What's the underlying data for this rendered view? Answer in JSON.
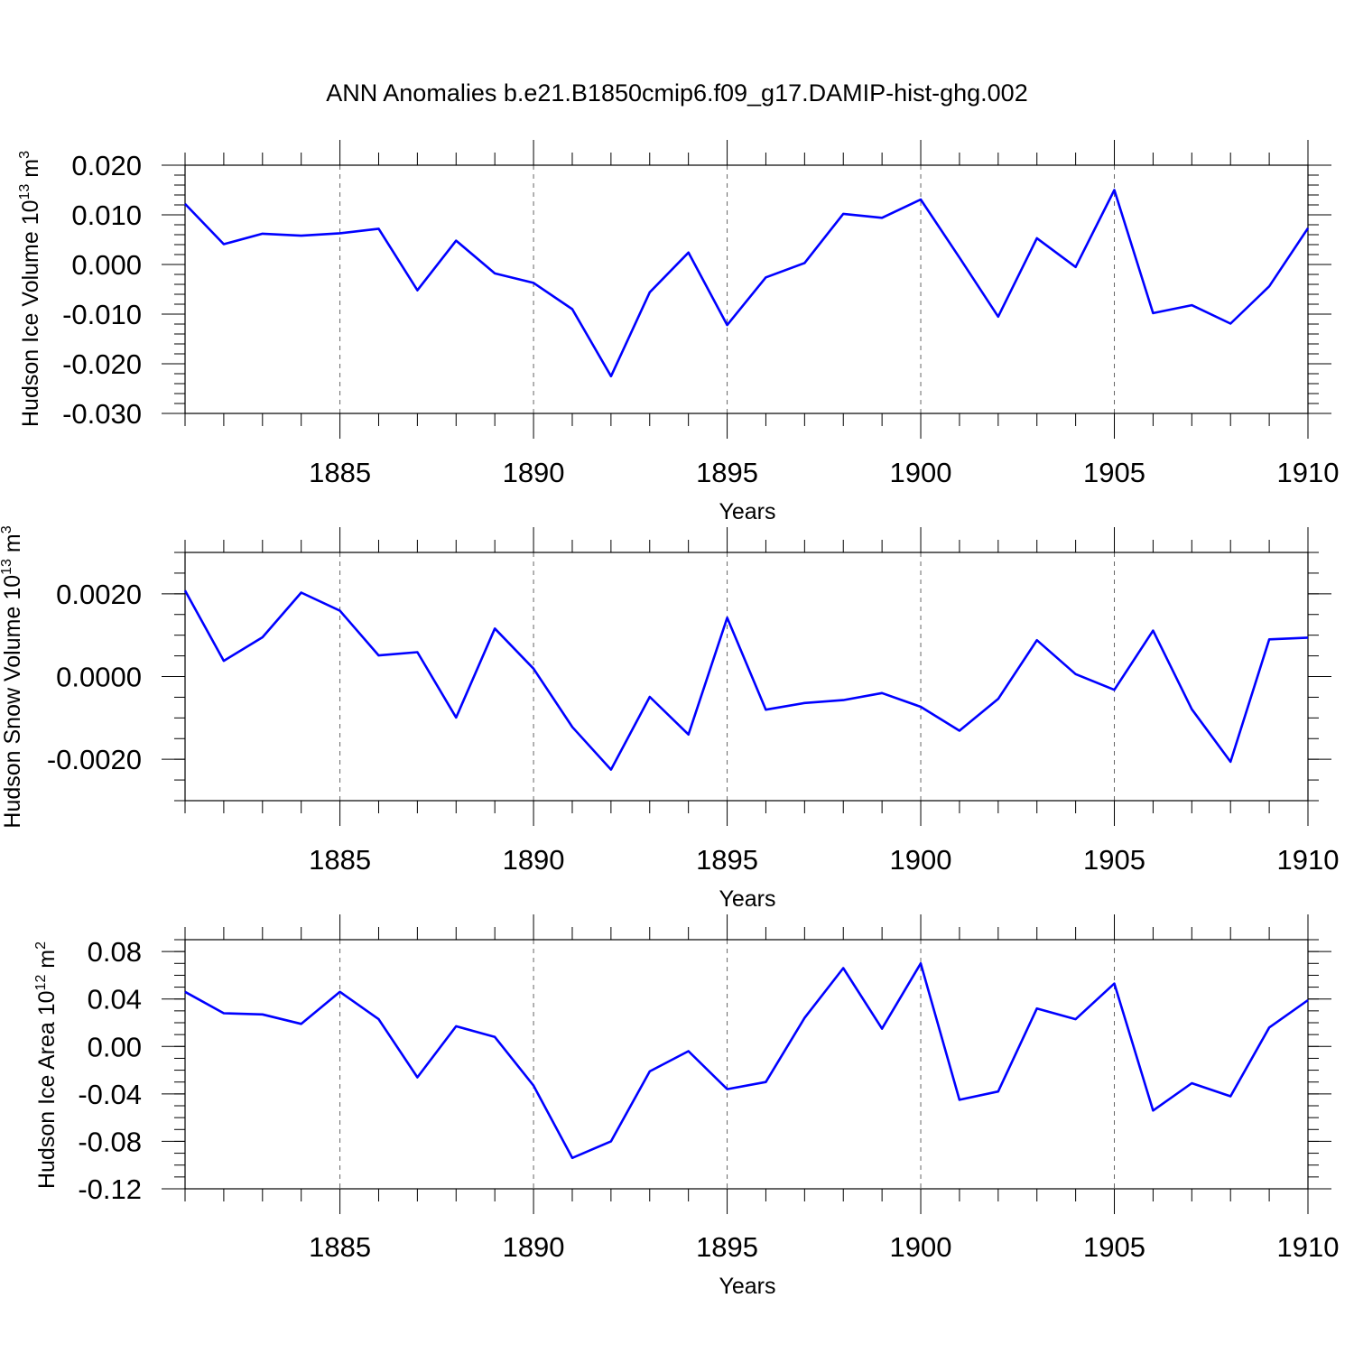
{
  "title": "ANN Anomalies b.e21.B1850cmip6.f09_g17.DAMIP-hist-ghg.002",
  "line_color": "#0000ff",
  "chart_data": [
    {
      "type": "line",
      "ylabel_main": "Hudson Ice Volume 10",
      "ylabel_exp": "13",
      "ylabel_unit": " m",
      "ylabel_unit_exp": "3",
      "xlabel": "Years",
      "xlim": [
        1881,
        1910
      ],
      "ylim": [
        -0.03,
        0.02
      ],
      "yticks": [
        "0.020",
        "0.010",
        "0.000",
        "-0.010",
        "-0.020",
        "-0.030"
      ],
      "ytick_values": [
        0.02,
        0.01,
        0.0,
        -0.01,
        -0.02,
        -0.03
      ],
      "yminor_step": 0.002,
      "xticks": [
        "1885",
        "1890",
        "1895",
        "1900",
        "1905",
        "1910"
      ],
      "x": [
        1881,
        1882,
        1883,
        1884,
        1885,
        1886,
        1887,
        1888,
        1889,
        1890,
        1891,
        1892,
        1893,
        1894,
        1895,
        1896,
        1897,
        1898,
        1899,
        1900,
        1901,
        1902,
        1903,
        1904,
        1905,
        1906,
        1907,
        1908,
        1909,
        1910
      ],
      "series": [
        {
          "values": [
            0.0122,
            0.0041,
            0.0062,
            0.0058,
            0.0063,
            0.0072,
            -0.0052,
            0.0048,
            -0.0018,
            -0.0037,
            -0.009,
            -0.0225,
            -0.0056,
            0.0024,
            -0.0122,
            -0.0026,
            0.0003,
            0.0102,
            0.0094,
            0.0131,
            0.0014,
            -0.0105,
            0.0053,
            -0.0005,
            0.015,
            -0.0098,
            -0.0082,
            -0.0119,
            -0.0044,
            0.0073
          ]
        }
      ]
    },
    {
      "type": "line",
      "ylabel_main": "Hudson Snow Volume 10",
      "ylabel_exp": "13",
      "ylabel_unit": " m",
      "ylabel_unit_exp": "3",
      "xlabel": "Years",
      "xlim": [
        1881,
        1910
      ],
      "ylim": [
        -0.003,
        0.003
      ],
      "yticks": [
        "0.0020",
        "0.0000",
        "-0.0020"
      ],
      "ytick_values": [
        0.002,
        0.0,
        -0.002
      ],
      "yminor_step": 0.0005,
      "xticks": [
        "1885",
        "1890",
        "1895",
        "1900",
        "1905",
        "1910"
      ],
      "x": [
        1881,
        1882,
        1883,
        1884,
        1885,
        1886,
        1887,
        1888,
        1889,
        1890,
        1891,
        1892,
        1893,
        1894,
        1895,
        1896,
        1897,
        1898,
        1899,
        1900,
        1901,
        1902,
        1903,
        1904,
        1905,
        1906,
        1907,
        1908,
        1909,
        1910
      ],
      "series": [
        {
          "values": [
            0.00208,
            0.00038,
            0.00095,
            0.00203,
            0.00159,
            0.00051,
            0.00059,
            -0.00099,
            0.00116,
            0.00019,
            -0.00122,
            -0.00225,
            -0.00049,
            -0.0014,
            0.00142,
            -0.0008,
            -0.00064,
            -0.00057,
            -0.0004,
            -0.00073,
            -0.00131,
            -0.00054,
            0.00088,
            6e-05,
            -0.00032,
            0.00111,
            -0.00079,
            -0.00206,
            0.0009,
            0.00094
          ]
        }
      ]
    },
    {
      "type": "line",
      "ylabel_main": "Hudson Ice Area 10",
      "ylabel_exp": "12",
      "ylabel_unit": " m",
      "ylabel_unit_exp": "2",
      "xlabel": "Years",
      "xlim": [
        1881,
        1910
      ],
      "ylim": [
        -0.12,
        0.09
      ],
      "yticks": [
        "0.08",
        "0.04",
        "0.00",
        "-0.04",
        "-0.08",
        "-0.12"
      ],
      "ytick_values": [
        0.08,
        0.04,
        0.0,
        -0.04,
        -0.08,
        -0.12
      ],
      "yminor_step": 0.01,
      "xticks": [
        "1885",
        "1890",
        "1895",
        "1900",
        "1905",
        "1910"
      ],
      "x": [
        1881,
        1882,
        1883,
        1884,
        1885,
        1886,
        1887,
        1888,
        1889,
        1890,
        1891,
        1892,
        1893,
        1894,
        1895,
        1896,
        1897,
        1898,
        1899,
        1900,
        1901,
        1902,
        1903,
        1904,
        1905,
        1906,
        1907,
        1908,
        1909,
        1910
      ],
      "series": [
        {
          "values": [
            0.046,
            0.028,
            0.027,
            0.019,
            0.046,
            0.023,
            -0.026,
            0.017,
            0.008,
            -0.033,
            -0.094,
            -0.08,
            -0.021,
            -0.004,
            -0.036,
            -0.03,
            0.024,
            0.066,
            0.015,
            0.07,
            -0.045,
            -0.038,
            0.032,
            0.023,
            0.053,
            -0.054,
            -0.031,
            -0.042,
            0.016,
            0.039
          ]
        }
      ]
    }
  ]
}
